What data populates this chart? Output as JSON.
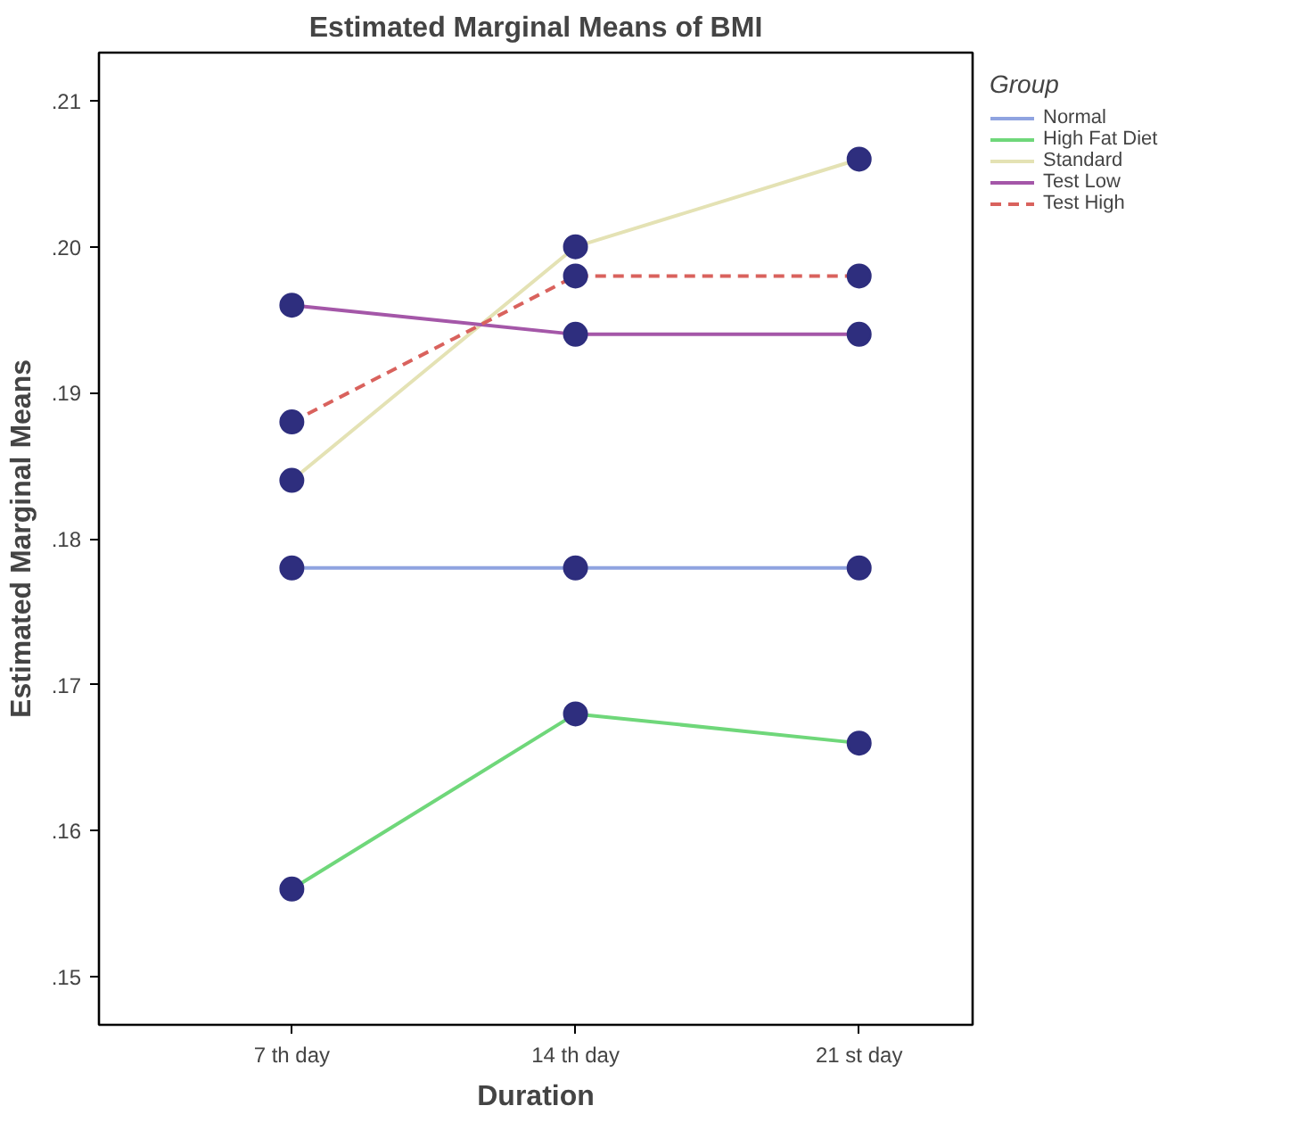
{
  "chart_data": {
    "type": "line",
    "title": "Estimated Marginal Means of BMI",
    "xlabel": "Duration",
    "ylabel": "Estimated Marginal Means",
    "legend_title": "Group",
    "categories": [
      "7 th day",
      "14 th day",
      "21 st day"
    ],
    "series": [
      {
        "name": "Normal",
        "color": "#8fa3e0",
        "values": [
          0.178,
          0.178,
          0.178
        ]
      },
      {
        "name": "High Fat Diet",
        "color": "#6fd77a",
        "values": [
          0.156,
          0.168,
          0.166
        ]
      },
      {
        "name": "Standard",
        "color": "#e4e2b4",
        "values": [
          0.184,
          0.2,
          0.206
        ]
      },
      {
        "name": "Test Low",
        "color": "#a457a8",
        "values": [
          0.196,
          0.194,
          0.194
        ]
      },
      {
        "name": "Test High",
        "color": "#d9625d",
        "values": [
          0.188,
          0.198,
          0.198
        ],
        "line_style": "dashed"
      }
    ],
    "ylim": [
      0.1467,
      0.2133
    ],
    "yticks": [
      {
        "value": 0.15,
        "label": ".15"
      },
      {
        "value": 0.16,
        "label": ".16"
      },
      {
        "value": 0.17,
        "label": ".17"
      },
      {
        "value": 0.18,
        "label": ".18"
      },
      {
        "value": 0.19,
        "label": ".19"
      },
      {
        "value": 0.2,
        "label": ".20"
      },
      {
        "value": 0.21,
        "label": ".21"
      }
    ],
    "marker": "circle",
    "grid": false,
    "legend": "right"
  }
}
